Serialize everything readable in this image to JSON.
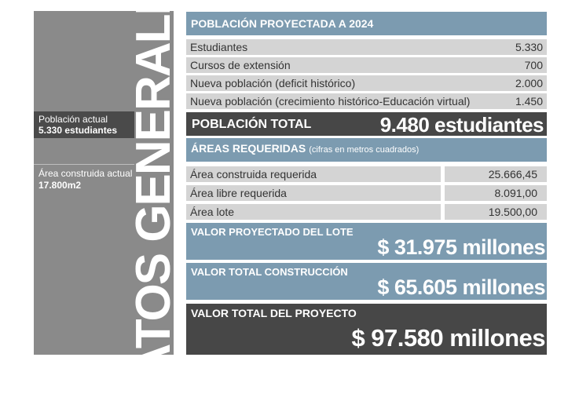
{
  "sidebar": {
    "vertical_title": "DATOS GENERALES",
    "poblacion_label": "Población actual",
    "poblacion_value": "5.330 estudiantes",
    "area_label": "Área construida actual",
    "area_value": "17.800m2"
  },
  "poblacion": {
    "title": "POBLACIÓN PROYECTADA A 2024",
    "rows": [
      {
        "label": "Estudiantes",
        "value": "5.330"
      },
      {
        "label": "Cursos de extensión",
        "value": "700"
      },
      {
        "label": "Nueva población (deficit histórico)",
        "value": "2.000"
      },
      {
        "label": "Nueva población (crecimiento histórico-Educación virtual)",
        "value": "1.450"
      }
    ],
    "total_label": "POBLACIÓN TOTAL",
    "total_value": "9.480 estudiantes"
  },
  "areas": {
    "title": "ÁREAS REQUERIDAS",
    "note": "(cifras en metros cuadrados)",
    "rows": [
      {
        "label": "Área construida requerida",
        "value": "25.666,45"
      },
      {
        "label": "Área libre requerida",
        "value": "8.091,00"
      },
      {
        "label": "Área lote",
        "value": "19.500,00"
      }
    ]
  },
  "valores": {
    "lote_label": "VALOR PROYECTADO DEL LOTE",
    "lote_value": "$ 31.975 millones",
    "construccion_label": "VALOR TOTAL CONSTRUCCIÓN",
    "construccion_value": "$ 65.605 millones",
    "proyecto_label": "VALOR TOTAL DEL PROYECTO",
    "proyecto_value": "$ 97.580 millones"
  },
  "colors": {
    "accent_blue": "#7c9bb0",
    "dark_gray": "#474747",
    "mid_gray": "#8a8a8a",
    "light_gray": "#d4d4d4"
  }
}
